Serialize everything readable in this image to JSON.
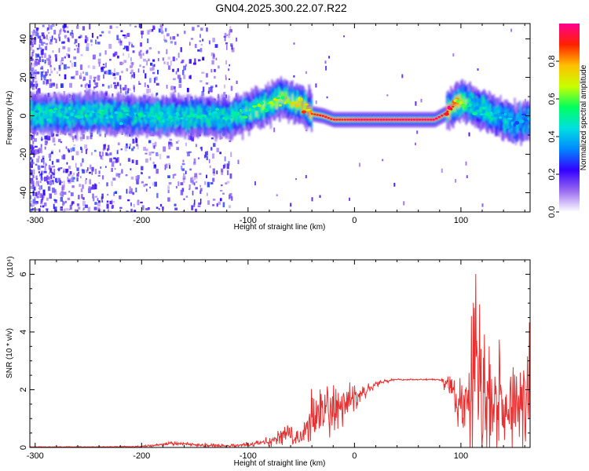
{
  "title": "GN04.2025.300.22.07.R22",
  "chart_data": [
    {
      "type": "heatmap",
      "xlabel": "Height of straight line (km)",
      "ylabel": "Frequency (Hz)",
      "xlim": [
        -305,
        165
      ],
      "ylim": [
        -50,
        48
      ],
      "xticks": [
        -300,
        -200,
        -100,
        0,
        100
      ],
      "yticks": [
        -40,
        -20,
        0,
        20,
        40
      ],
      "colorbar": {
        "label": "Normalized spectral amplitude",
        "range": [
          0,
          1
        ],
        "ticks": [
          0.0,
          0.2,
          0.4,
          0.6,
          0.8
        ],
        "colors": [
          "#ffffff",
          "#9a6cf0",
          "#3300ff",
          "#0088ff",
          "#00e0e0",
          "#00ff60",
          "#c8ff00",
          "#ffc000",
          "#ff2000",
          "#ff0090"
        ]
      },
      "ridge": {
        "x": [
          -305,
          -250,
          -200,
          -150,
          -120,
          -100,
          -80,
          -68,
          -60,
          -50,
          -40,
          -30,
          -20,
          -10,
          0,
          20,
          40,
          60,
          75,
          85,
          95,
          100,
          110,
          120,
          130,
          140,
          150,
          165
        ],
        "y": [
          1,
          1,
          0,
          0,
          -1,
          2,
          6,
          10,
          7,
          6,
          1,
          0,
          -2,
          -2,
          -2,
          -2,
          -2,
          -2,
          -2,
          1,
          6,
          8,
          6,
          3,
          0,
          -2,
          -4,
          -2
        ],
        "peak_amplitude": [
          0.45,
          0.45,
          0.45,
          0.45,
          0.45,
          0.5,
          0.6,
          0.7,
          0.6,
          0.75,
          0.85,
          0.9,
          0.9,
          0.9,
          0.95,
          0.95,
          0.95,
          0.95,
          0.95,
          0.9,
          0.85,
          0.6,
          0.45,
          0.45,
          0.45,
          0.4,
          0.35,
          0.35
        ]
      }
    },
    {
      "type": "line",
      "xlabel": "Height of straight line (km)",
      "ylabel": "SNR (10 * v/v)",
      "yscale_label": "(x10⁴)",
      "xlim": [
        -305,
        165
      ],
      "ylim": [
        0,
        6.5
      ],
      "xticks": [
        -300,
        -200,
        -100,
        0,
        100
      ],
      "yticks": [
        0,
        2,
        4,
        6
      ],
      "color": "#e83030",
      "envelope": {
        "x": [
          -305,
          -250,
          -200,
          -180,
          -170,
          -150,
          -120,
          -100,
          -80,
          -70,
          -60,
          -55,
          -50,
          -45,
          -40,
          -30,
          -20,
          -10,
          0,
          10,
          20,
          30,
          40,
          60,
          80,
          85,
          90,
          95,
          100,
          105,
          110,
          115,
          120,
          130,
          140,
          150,
          165
        ],
        "mean": [
          0.02,
          0.02,
          0.03,
          0.1,
          0.15,
          0.1,
          0.05,
          0.1,
          0.2,
          0.35,
          0.5,
          0.35,
          0.3,
          0.6,
          1.1,
          1.2,
          1.3,
          1.5,
          1.7,
          2.0,
          2.2,
          2.3,
          2.35,
          2.35,
          2.35,
          2.2,
          2.1,
          1.6,
          1.4,
          1.6,
          2.0,
          2.0,
          1.8,
          1.6,
          1.5,
          1.4,
          1.4
        ],
        "spread": [
          0.01,
          0.01,
          0.02,
          0.05,
          0.06,
          0.05,
          0.04,
          0.06,
          0.1,
          0.25,
          0.4,
          0.2,
          0.2,
          0.5,
          0.8,
          0.8,
          0.8,
          0.6,
          0.4,
          0.2,
          0.1,
          0.05,
          0.02,
          0.02,
          0.02,
          0.2,
          0.3,
          0.6,
          0.7,
          1.2,
          2.5,
          2.2,
          1.8,
          1.5,
          1.3,
          1.2,
          1.2
        ]
      }
    }
  ]
}
